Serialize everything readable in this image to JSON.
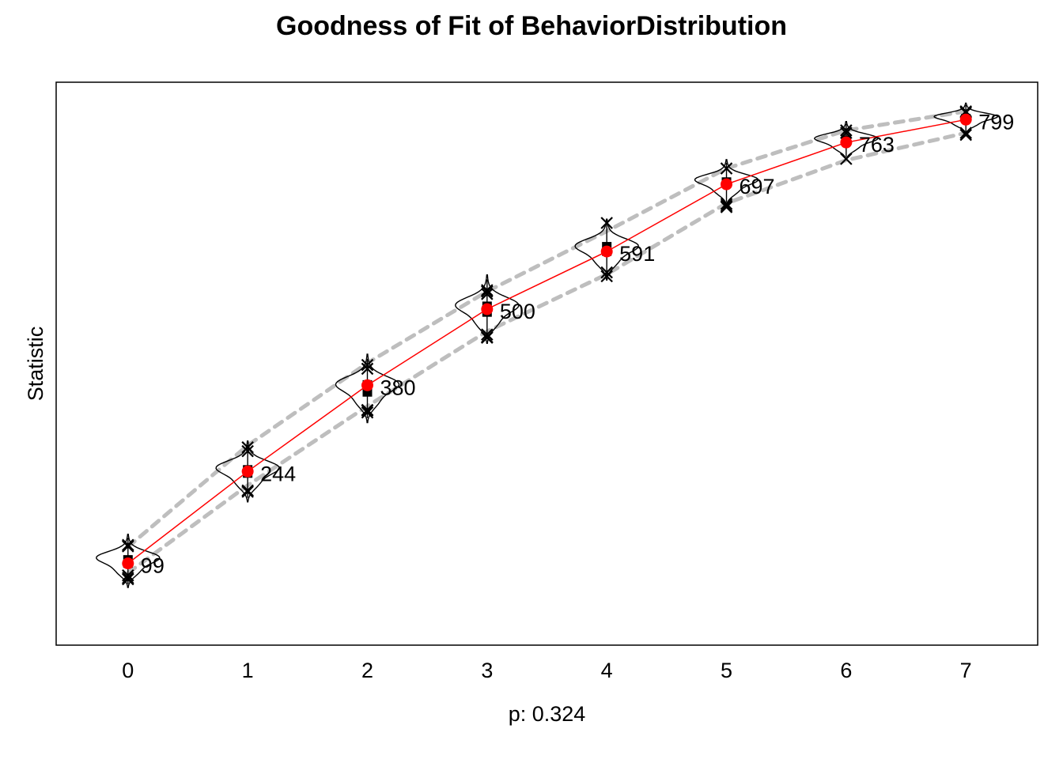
{
  "chart_data": {
    "type": "line",
    "title": "Goodness of Fit of BehaviorDistribution",
    "xlabel": "p: 0.324",
    "ylabel": "Statistic",
    "x": [
      0,
      1,
      2,
      3,
      4,
      5,
      6,
      7
    ],
    "xlim": [
      -0.6,
      7.6
    ],
    "ylim": [
      -30,
      858
    ],
    "y_tick_labels_shown": false,
    "grid": false,
    "legend": "none",
    "colors": {
      "observed": "#ff0000",
      "band": "#bebebe",
      "violin": "#000000",
      "markers": "#000000"
    },
    "series": [
      {
        "name": "",
        "style": "red line with red dots",
        "values": [
          99,
          244,
          380,
          500,
          591,
          697,
          763,
          799
        ],
        "labels": [
          "99",
          "244",
          "380",
          "500",
          "591",
          "697",
          "763",
          "799"
        ]
      },
      {
        "name": "",
        "style": "grey dashed band upper",
        "values": [
          125,
          285,
          415,
          528,
          623,
          722,
          782,
          812
        ]
      },
      {
        "name": "",
        "style": "grey dashed band lower",
        "values": [
          84,
          222,
          347,
          465,
          555,
          667,
          735,
          778
        ]
      }
    ],
    "simulated": [
      {
        "x": 0,
        "center": 103,
        "width": 0.24,
        "spread": 14,
        "box": [
          92,
          112
        ],
        "extremes": [
          74,
          126,
          128,
          80,
          76
        ]
      },
      {
        "x": 1,
        "center": 244,
        "width": 0.24,
        "spread": 16,
        "box": [
          234,
          254
        ],
        "extremes": [
          212,
          276,
          282,
          214
        ]
      },
      {
        "x": 2,
        "center": 375,
        "width": 0.24,
        "spread": 18,
        "box": [
          362,
          388
        ],
        "extremes": [
          337,
          406,
          412,
          341,
          340
        ]
      },
      {
        "x": 3,
        "center": 500,
        "width": 0.24,
        "spread": 18,
        "box": [
          488,
          512
        ],
        "extremes": [
          456,
          524,
          530,
          460,
          455,
          528
        ]
      },
      {
        "x": 4,
        "center": 594,
        "width": 0.24,
        "spread": 16,
        "box": [
          584,
          606
        ],
        "extremes": [
          552,
          636,
          558
        ]
      },
      {
        "x": 5,
        "center": 700,
        "width": 0.24,
        "spread": 12,
        "box": [
          692,
          708
        ],
        "extremes": [
          661,
          722,
          666,
          663
        ]
      },
      {
        "x": 6,
        "center": 766,
        "width": 0.24,
        "spread": 10,
        "box": [
          758,
          774
        ],
        "extremes": [
          737,
          782,
          778
        ]
      },
      {
        "x": 7,
        "center": 801,
        "width": 0.24,
        "spread": 8,
        "box": [
          794,
          808
        ],
        "extremes": [
          775,
          812,
          778,
          810
        ]
      }
    ]
  }
}
